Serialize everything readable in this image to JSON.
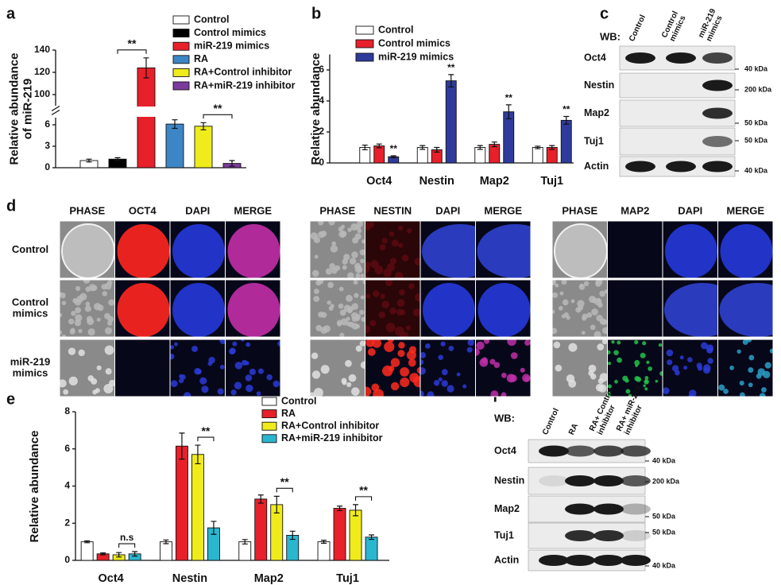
{
  "panel_labels": [
    "a",
    "b",
    "c",
    "d",
    "e",
    "f"
  ],
  "chart_data": [
    {
      "type": "bar",
      "y_label": "Relative abundance of miR-219",
      "categories": [
        "Control",
        "Control mimics",
        "miR-219 mimics",
        "RA",
        "RA+Control inhibitor",
        "RA+miR-219 inhibitor"
      ],
      "colors": [
        "#ffffff",
        "#000000",
        "#e8202a",
        "#3d86c6",
        "#f0ec1c",
        "#7b3a9c"
      ],
      "values": [
        1,
        1.2,
        124,
        6.1,
        5.8,
        0.6
      ],
      "errors": [
        0.2,
        0.2,
        9,
        0.6,
        0.5,
        0.4
      ],
      "ylim": [
        0,
        140
      ],
      "axis_break": [
        7,
        90
      ],
      "yticks": [
        0,
        3,
        6,
        100,
        120,
        140
      ],
      "annotations": [
        {
          "text": "**",
          "from": 1,
          "to": 2
        },
        {
          "text": "**",
          "from": 4,
          "to": 5
        }
      ]
    },
    {
      "type": "bar",
      "y_label": "Relative abundance",
      "categories": [
        "Oct4",
        "Nestin",
        "Map2",
        "Tuj1"
      ],
      "series": [
        {
          "name": "Control",
          "color": "#ffffff",
          "values": [
            1,
            1,
            1,
            1
          ],
          "errors": [
            0.15,
            0.12,
            0.12,
            0.08
          ]
        },
        {
          "name": "Control mimics",
          "color": "#e8202a",
          "values": [
            1.1,
            0.85,
            1.2,
            1.0
          ],
          "errors": [
            0.12,
            0.15,
            0.15,
            0.12
          ]
        },
        {
          "name": "miR-219 mimics",
          "color": "#2e3b9c",
          "values": [
            0.4,
            5.3,
            3.3,
            2.75
          ],
          "errors": [
            0.06,
            0.4,
            0.45,
            0.25
          ]
        }
      ],
      "ylim": [
        0,
        7
      ],
      "yticks": [
        0,
        2,
        4,
        6
      ],
      "annotations": [
        {
          "text": "**",
          "series": 2,
          "category": 0
        },
        {
          "text": "**",
          "series": 2,
          "category": 1
        },
        {
          "text": "**",
          "series": 2,
          "category": 2
        },
        {
          "text": "**",
          "series": 2,
          "category": 3
        }
      ]
    },
    {
      "type": "bar",
      "y_label": "Relative abundance",
      "categories": [
        "Oct4",
        "Nestin",
        "Map2",
        "Tuj1"
      ],
      "series": [
        {
          "name": "Control",
          "color": "#ffffff",
          "values": [
            1,
            1,
            1,
            1
          ],
          "errors": [
            0.05,
            0.1,
            0.12,
            0.08
          ]
        },
        {
          "name": "RA",
          "color": "#e8202a",
          "values": [
            0.35,
            6.15,
            3.3,
            2.8
          ],
          "errors": [
            0.05,
            0.7,
            0.22,
            0.12
          ]
        },
        {
          "name": "RA+Control inhibitor",
          "color": "#f0ec1c",
          "values": [
            0.3,
            5.7,
            3.0,
            2.7
          ],
          "errors": [
            0.12,
            0.5,
            0.45,
            0.3
          ]
        },
        {
          "name": "RA+miR-219 inhibitor",
          "color": "#2ab6cf",
          "values": [
            0.35,
            1.75,
            1.35,
            1.25
          ],
          "errors": [
            0.12,
            0.35,
            0.22,
            0.12
          ]
        }
      ],
      "ylim": [
        0,
        8
      ],
      "yticks": [
        0,
        2,
        4,
        6,
        8
      ],
      "annotations": [
        {
          "text": "n.s",
          "category": 0,
          "from": 2,
          "to": 3
        },
        {
          "text": "**",
          "category": 1,
          "from": 2,
          "to": 3
        },
        {
          "text": "**",
          "category": 2,
          "from": 2,
          "to": 3
        },
        {
          "text": "**",
          "category": 3,
          "from": 2,
          "to": 3
        }
      ]
    }
  ],
  "blots": [
    {
      "wb_label": "WB:",
      "lanes": [
        "Control",
        "Control mimics",
        "miR-219 mimics"
      ],
      "rows": [
        "Oct4",
        "Nestin",
        "Map2",
        "Tuj1",
        "Actin"
      ],
      "markers": [
        "40 kDa",
        "200 kDa",
        "50 kDa",
        "50 kDa",
        "40 kDa"
      ]
    },
    {
      "wb_label": "WB:",
      "lanes": [
        "Control",
        "RA",
        "RA+ Control inhibitor",
        "RA+ miR-219 inhibitor"
      ],
      "rows": [
        "Oct4",
        "Nestin",
        "Map2",
        "Tuj1",
        "Actin"
      ],
      "markers": [
        "40 kDa",
        "200 kDa",
        "50 kDa",
        "50 kDa",
        "40 kDa"
      ]
    }
  ],
  "imaging": {
    "groups": [
      [
        "PHASE",
        "OCT4",
        "DAPI",
        "MERGE"
      ],
      [
        "PHASE",
        "NESTIN",
        "DAPI",
        "MERGE"
      ],
      [
        "PHASE",
        "MAP2",
        "DAPI",
        "MERGE"
      ]
    ],
    "rows": [
      "Control",
      "Control mimics",
      "miR-219 mimics"
    ]
  }
}
